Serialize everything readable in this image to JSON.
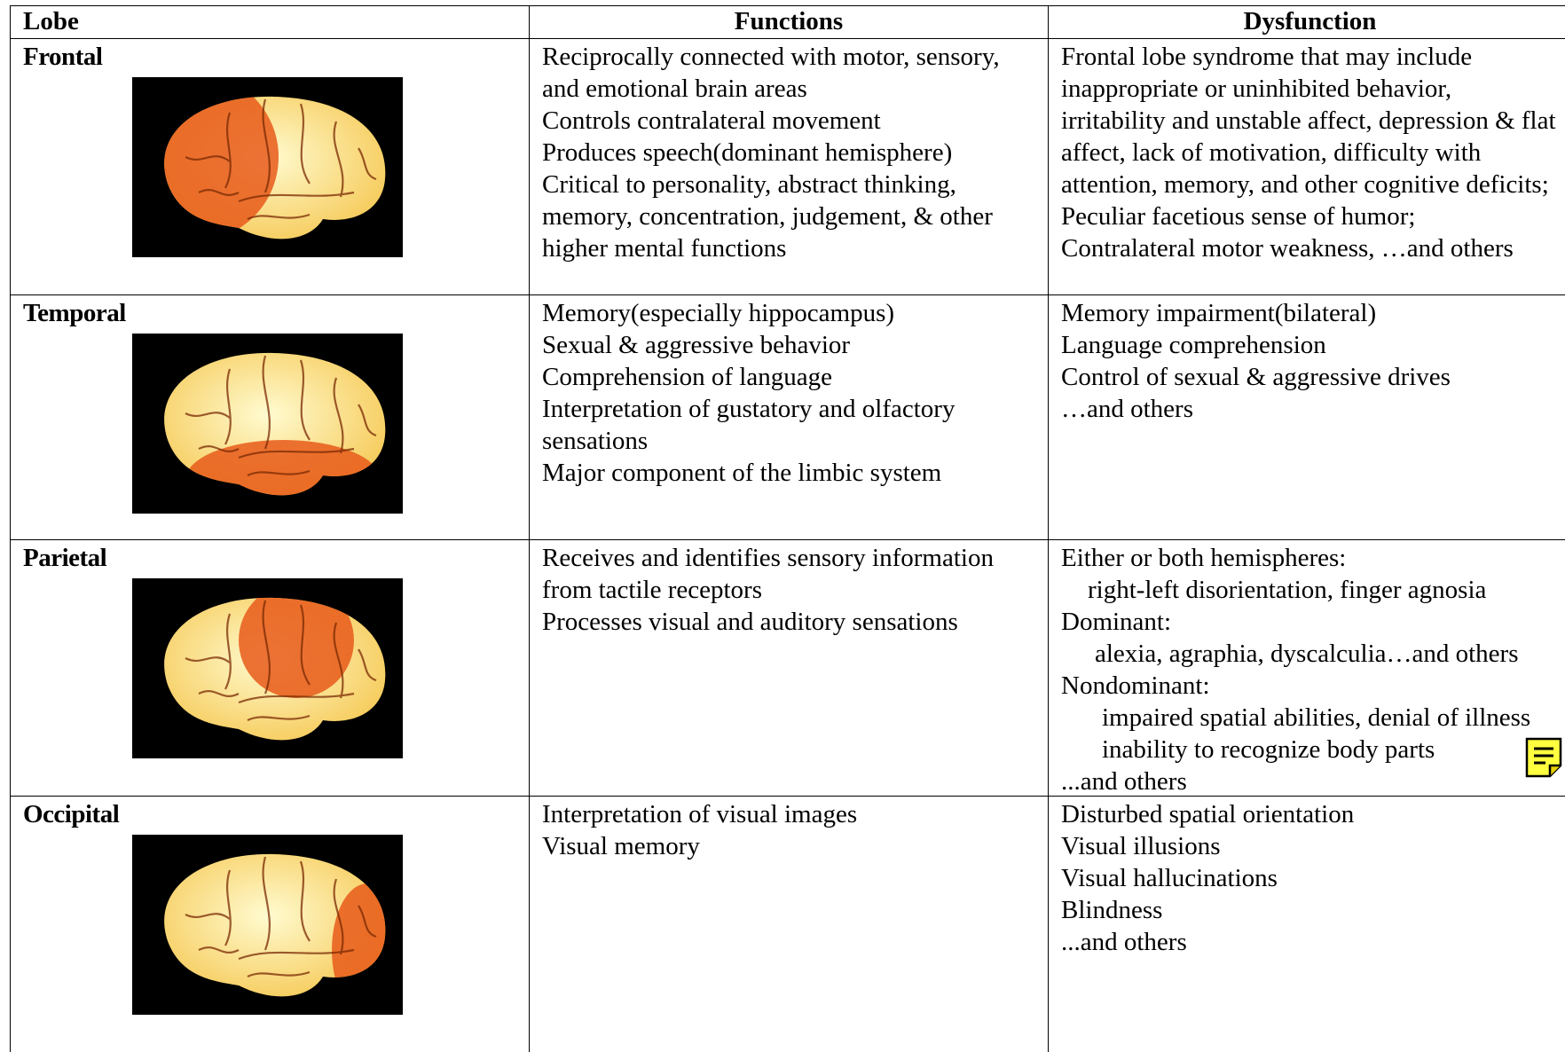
{
  "table": {
    "header": [
      "Lobe",
      "Functions",
      "Dysfunction"
    ],
    "rows": [
      {
        "lobe": "Frontal",
        "functions": [
          "Reciprocally connected with motor, sensory, and emotional brain areas",
          "Controls contralateral movement",
          "Produces speech(dominant hemisphere)",
          "Critical to personality, abstract thinking, memory, concentration, judgement, & other higher mental functions"
        ],
        "dysfunction": [
          "Frontal lobe syndrome that may include inappropriate or uninhibited behavior, irritability and unstable affect, depression & flat affect, lack of motivation, difficulty with attention, memory, and other cognitive deficits;",
          "Peculiar facetious sense of humor;",
          "Contralateral motor weakness, …and others"
        ]
      },
      {
        "lobe": "Temporal",
        "functions": [
          "Memory(especially hippocampus)",
          "Sexual & aggressive behavior",
          "Comprehension of language",
          "Interpretation of gustatory and olfactory sensations",
          "Major component of the limbic system"
        ],
        "dysfunction": [
          "Memory impairment(bilateral)",
          "Language comprehension",
          "Control of sexual & aggressive drives",
          "…and others"
        ]
      },
      {
        "lobe": "Parietal",
        "functions": [
          "Receives and identifies sensory information from tactile receptors",
          "Processes visual and auditory sensations"
        ],
        "dysfunction": [
          "Either or both hemispheres:",
          "right-left disorientation, finger agnosia",
          "Dominant:",
          "alexia, agraphia, dyscalculia…and others",
          "Nondominant:",
          "impaired spatial abilities, denial of illness",
          "inability to recognize body parts",
          "...and others"
        ]
      },
      {
        "lobe": "Occipital",
        "functions": [
          "Interpretation of visual images",
          "Visual memory"
        ],
        "dysfunction": [
          "Disturbed spatial orientation",
          "Visual illusions",
          "Visual hallucinations",
          "Blindness",
          "...and others"
        ]
      }
    ]
  }
}
